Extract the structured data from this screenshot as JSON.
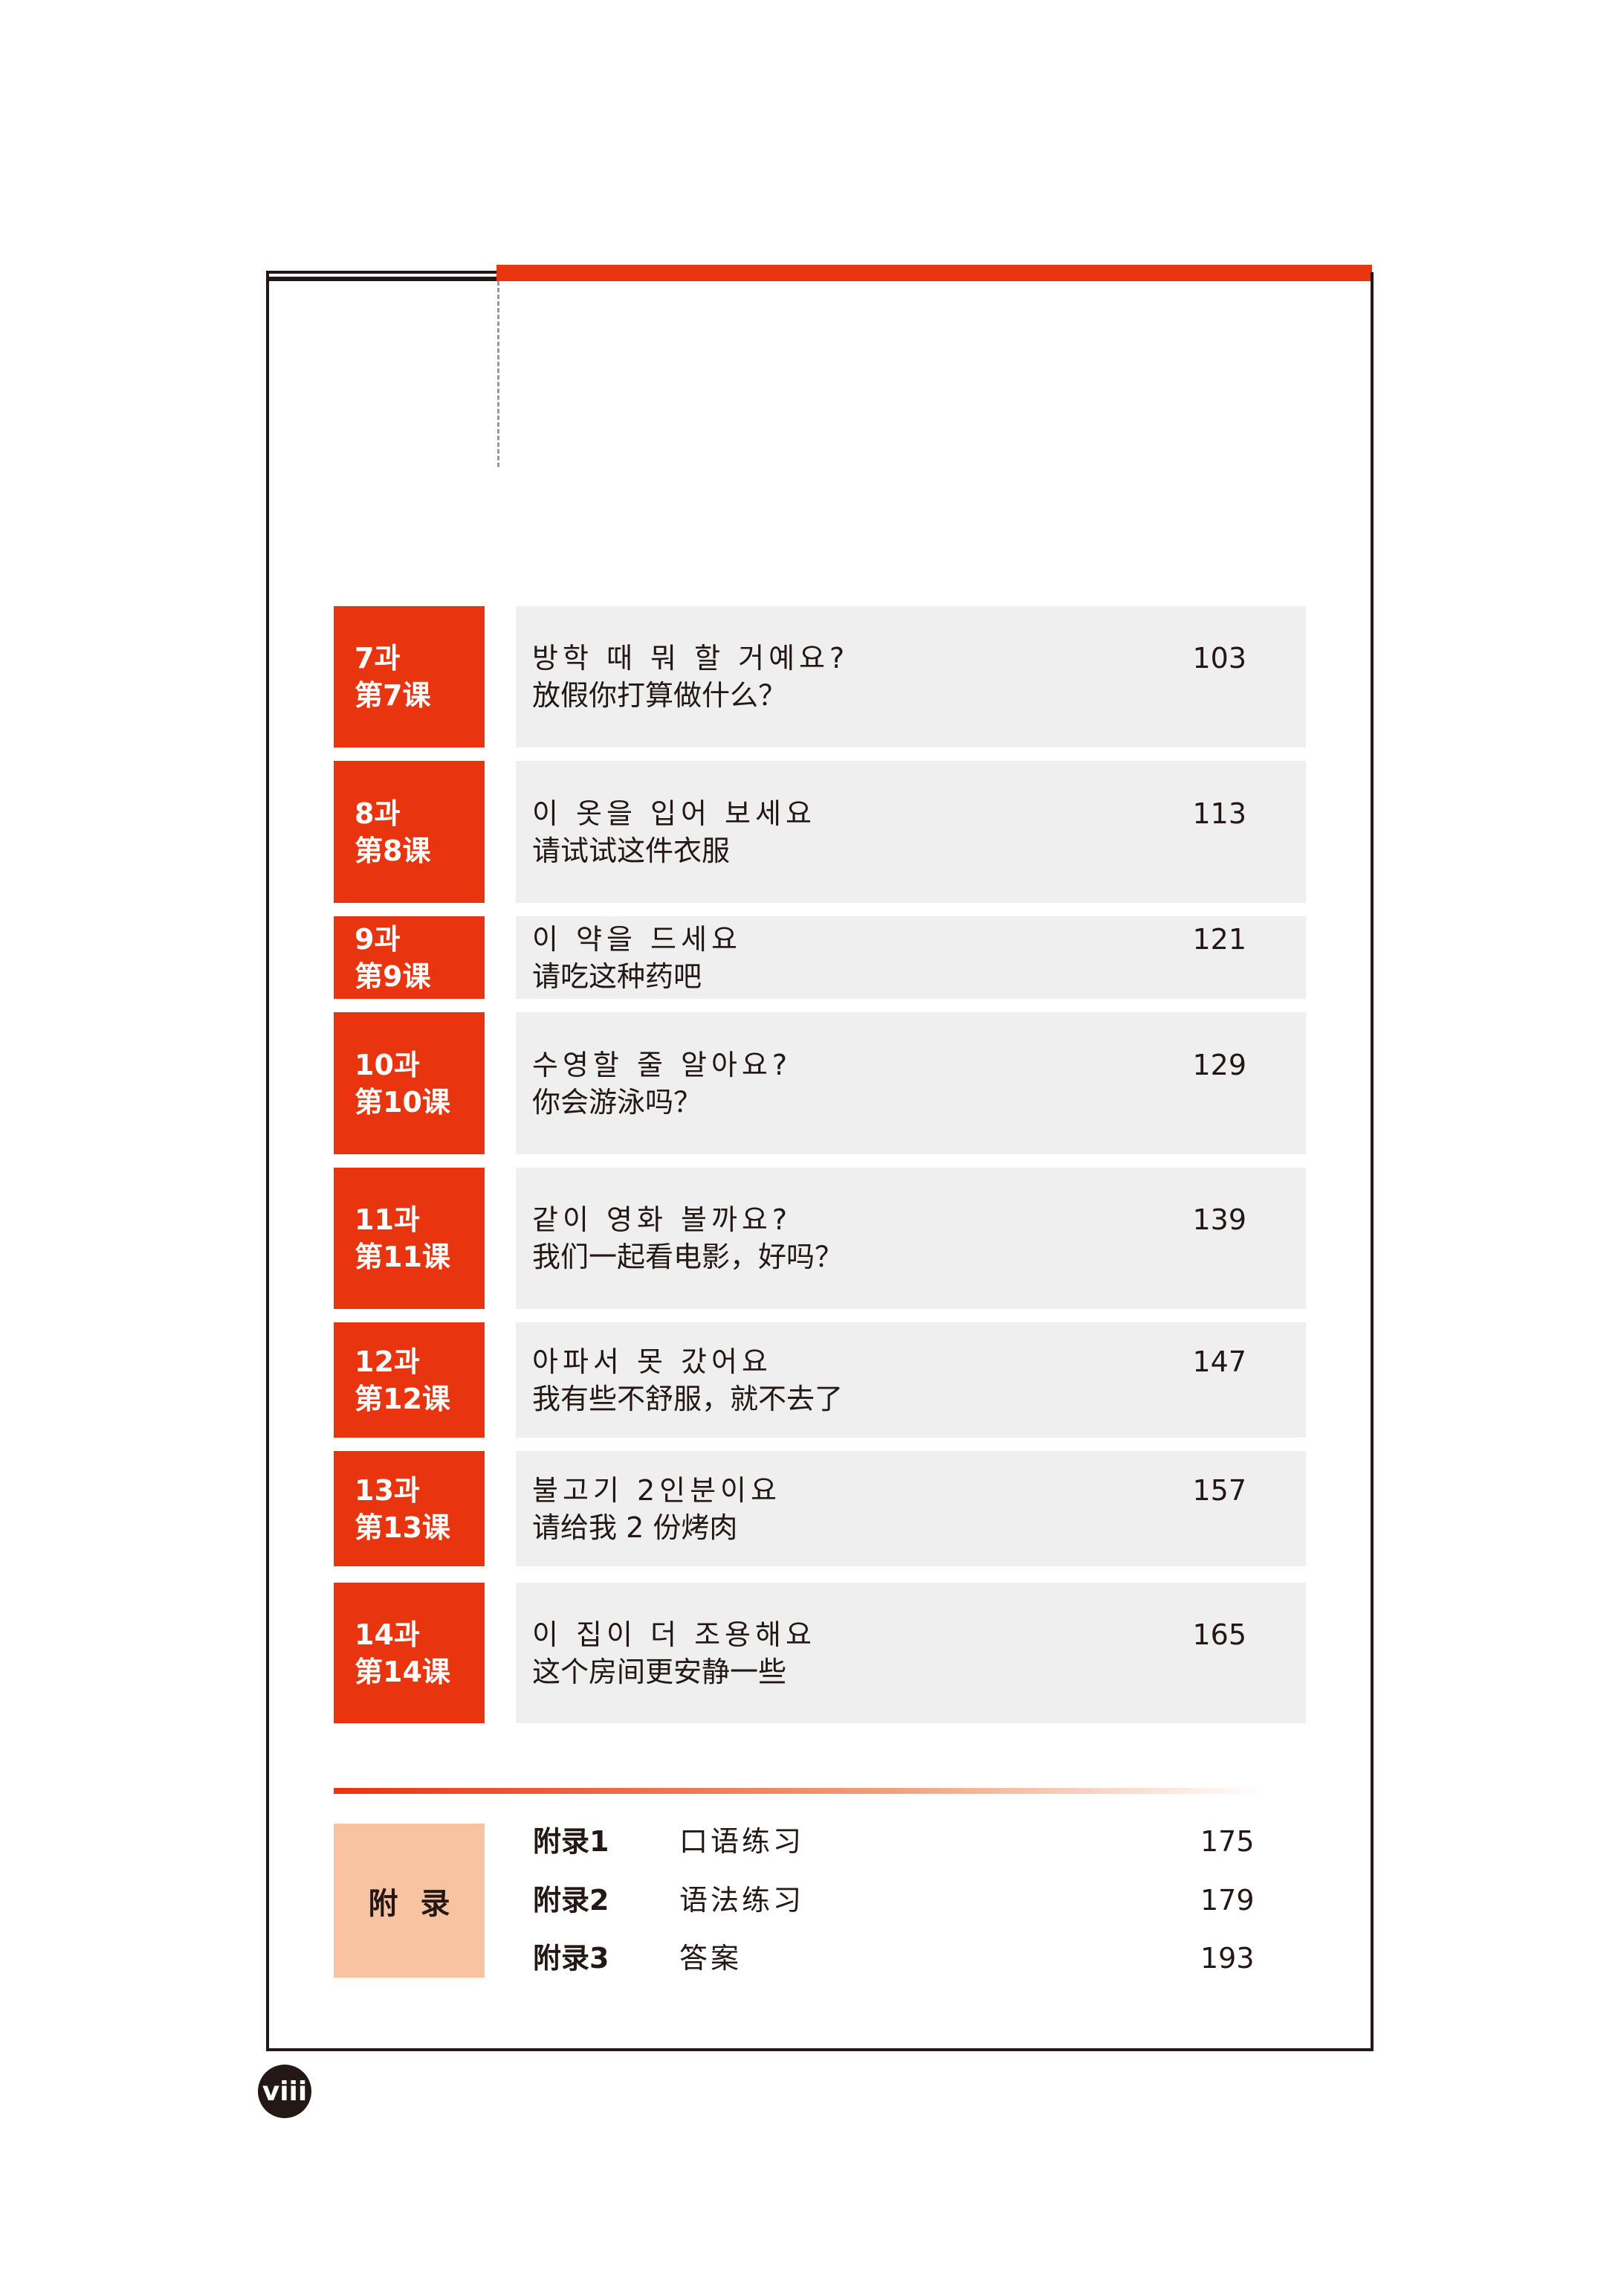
{
  "lessons": [
    {
      "label": "7과",
      "label_cn": "第7课",
      "title_kr": "방학 때 뭐 할 거예요?",
      "title_cn": "放假你打算做什么？",
      "page": "103"
    },
    {
      "label": "8과",
      "label_cn": "第8课",
      "title_kr": "이 옷을 입어 보세요",
      "title_cn": "请试试这件衣服",
      "page": "113"
    },
    {
      "label": "9과",
      "label_cn": "第9课",
      "title_kr": "이 약을 드세요",
      "title_cn": "请吃这种药吧",
      "page": "121"
    },
    {
      "label": "10과",
      "label_cn": "第10课",
      "title_kr": "수영할 줄 알아요?",
      "title_cn": "你会游泳吗？",
      "page": "129"
    },
    {
      "label": "11과",
      "label_cn": "第11课",
      "title_kr": "같이 영화 볼까요?",
      "title_cn": "我们一起看电影，好吗？",
      "page": "139"
    },
    {
      "label": "12과",
      "label_cn": "第12课",
      "title_kr": "아파서 못 갔어요",
      "title_cn": "我有些不舒服，就不去了",
      "page": "147"
    },
    {
      "label": "13과",
      "label_cn": "第13课",
      "title_kr": "불고기 2인분이요",
      "title_cn": "请给我 2 份烤肉",
      "page": "157"
    },
    {
      "label": "14과",
      "label_cn": "第14课",
      "title_kr": "이 집이 더 조용해요",
      "title_cn": "这个房间更安静一些",
      "page": "165"
    }
  ],
  "appendix": {
    "heading": "附录",
    "items": [
      {
        "label": "附录1",
        "title": "口语练习",
        "page": "175"
      },
      {
        "label": "附录2",
        "title": "语法练习",
        "page": "179"
      },
      {
        "label": "附录3",
        "title": "答案",
        "page": "193"
      }
    ]
  },
  "page_number": "viii",
  "colors": {
    "accent": "#e8340f",
    "appendix": "#f7c3a0",
    "row_bg": "#efefef",
    "ink": "#231815"
  }
}
